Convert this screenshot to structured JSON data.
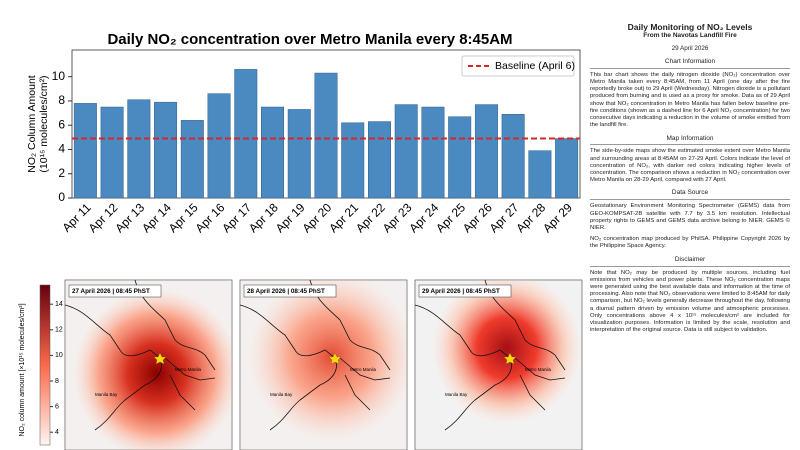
{
  "chart_data": {
    "type": "bar",
    "title": "Daily NO₂ concentration over Metro Manila every 8:45AM",
    "ylabel": [
      "NO₂ Column Amount",
      "(10¹⁵ molecules/cm²)"
    ],
    "categories": [
      "Apr 11",
      "Apr 12",
      "Apr 13",
      "Apr 14",
      "Apr 15",
      "Apr 16",
      "Apr 17",
      "Apr 18",
      "Apr 19",
      "Apr 20",
      "Apr 21",
      "Apr 22",
      "Apr 23",
      "Apr 24",
      "Apr 25",
      "Apr 26",
      "Apr 27",
      "Apr 28",
      "Apr 29"
    ],
    "values": [
      7.8,
      7.5,
      8.1,
      7.9,
      6.4,
      8.6,
      10.6,
      7.5,
      7.3,
      10.3,
      6.2,
      6.3,
      7.7,
      7.5,
      6.7,
      7.7,
      6.9,
      3.9,
      4.9
    ],
    "color": "#4a8ac0",
    "baseline": {
      "name": "Baseline (April 6)",
      "value": 4.9,
      "color": "#d62728"
    },
    "ylim": [
      0,
      12.2
    ],
    "yticks": [
      0,
      2,
      4,
      6,
      8,
      10
    ],
    "legend": "upper right"
  },
  "maps": {
    "colorbar_label": "NO₂ column amount [×10¹⁵ molecules/cm²]",
    "clim": [
      3,
      15.5
    ],
    "colorbar_ticks": [
      4,
      6,
      8,
      10,
      12,
      14
    ],
    "places": {
      "city": "Metro Manila",
      "bay": "Manila Bay"
    },
    "panels": [
      {
        "label": "27 April 2026 | 08:45 PhST"
      },
      {
        "label": "28 April 2026 | 08:45 PhST"
      },
      {
        "label": "29 April 2026 | 08:45 PhST"
      }
    ]
  },
  "panel": {
    "title": "Daily Monitoring of NO₂ Levels",
    "subtitle": "From the Navotas Landfill Fire",
    "date": "29 April 2026",
    "sections": [
      {
        "heading": "Chart Information",
        "paragraphs": [
          "This bar chart shows the daily nitrogen dioxide (NO₂) concentration over Metro Manila taken every 8:45AM, from 11 April (one day after the fire reportedly broke out) to 29 April (Wednesday). Nitrogen dioxide is a pollutant produced from burning and is used as a proxy for smoke. Data as of 29 April show that NO₂ concentration in Metro Manila has fallen below baseline pre-fire conditions (shown as a dashed line for 6 April NO₂ concentration) for two consecutive days indicating a reduction in the volume of smoke emitted from the landfill fire."
        ]
      },
      {
        "heading": "Map Information",
        "paragraphs": [
          "The side-by-side maps show the estimated smoke extent over Metro Manila and surrounding areas at 8:45AM on 27-29 April. Colors indicate the level of concentration of NO₂, with darker red colors indicating higher levels of concentration. The comparison shows a reduction in NO₂ concentration over Metro Manila on 28-29 April, compared with 27 April."
        ]
      },
      {
        "heading": "Data Source",
        "paragraphs": [
          "Geostationary Environment Monitoring Spectrometer (GEMS) data from GEO-KOMPSAT-2B satellite with 7.7 by 3.5 km resolution. Intellectual property rights to GEMS and GEMS data archive belong to NIER. GEMS © NIER.",
          "NO₂ concentration map produced by PhilSA. Philippine Copyright 2026 by the Philippine Space Agency."
        ]
      },
      {
        "heading": "Disclaimer",
        "paragraphs": [
          "Note that NO₂ may be produced by multiple sources, including fuel emissions from vehicles and power plants. These NO₂ concentration maps were generated using the best available data and information at the time of processing. Also note that NO₂ observations were limited to 8:45AM for daily comparison, but NO₂ levels generally decrease throughout the day, following a diurnal pattern driven by emission volume and atmospheric processes. Only concentrations above 4 x 10¹⁵ molecules/cm² are included for visualization purposes. Information is limited by the scale, resolution and interpretation of the original source. Data is still subject to validation."
        ]
      }
    ]
  }
}
